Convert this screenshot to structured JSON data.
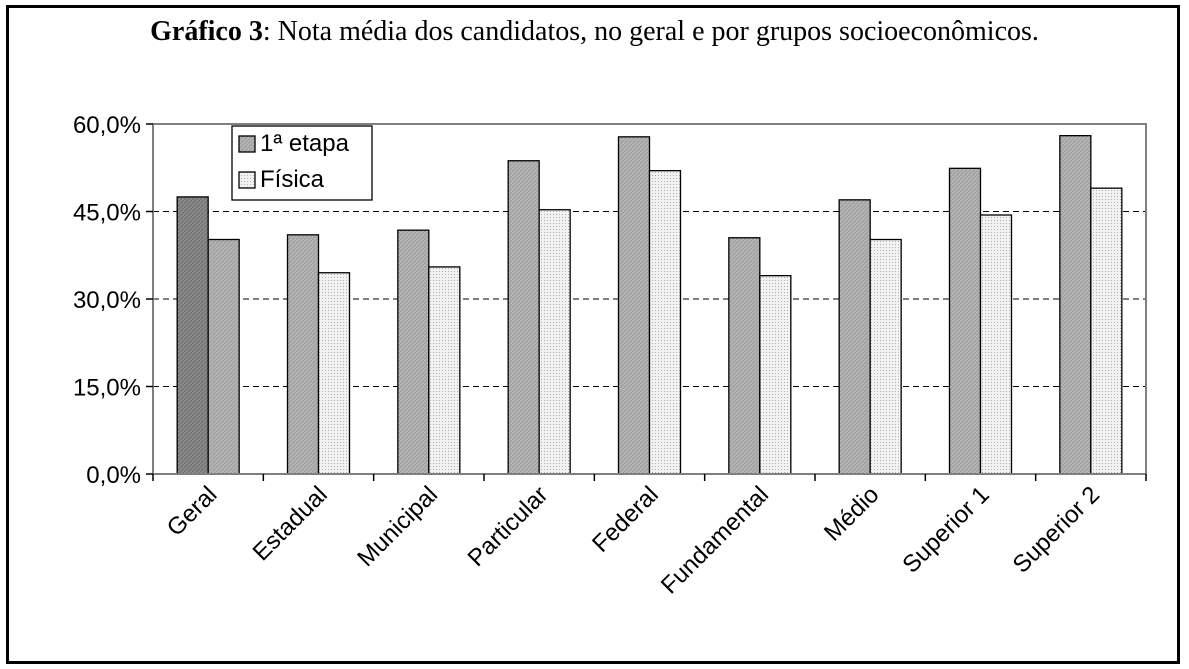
{
  "title": {
    "bold": "Gráfico 3",
    "rest": ": Nota média dos candidatos, no geral e por grupos socioeconômicos."
  },
  "chart_data": {
    "type": "bar",
    "title": "Gráfico 3: Nota média dos candidatos, no geral e por grupos socioeconômicos.",
    "categories": [
      "Geral",
      "Estadual",
      "Municipal",
      "Particular",
      "Federal",
      "Fundamental",
      "Médio",
      "Superior 1",
      "Superior 2"
    ],
    "series": [
      {
        "name": "1ª etapa",
        "values": [
          47.5,
          41.0,
          41.8,
          53.7,
          57.8,
          40.5,
          47.0,
          52.4,
          58.0
        ]
      },
      {
        "name": "Física",
        "values": [
          40.2,
          34.5,
          35.5,
          45.3,
          52.0,
          34.0,
          40.2,
          44.4,
          49.0
        ]
      }
    ],
    "ylim": [
      0,
      60
    ],
    "yticks": [
      "0,0%",
      "15,0%",
      "30,0%",
      "45,0%",
      "60,0%"
    ],
    "grid": true,
    "legend": "top-left"
  }
}
